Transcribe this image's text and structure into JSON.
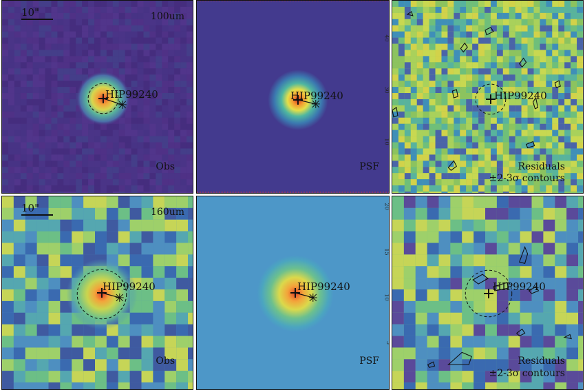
{
  "target_name": "HIP99240",
  "scale_bar_label": "10\"",
  "rows": [
    {
      "band": "100um",
      "panels": [
        {
          "type": "observed",
          "label": "Obs"
        },
        {
          "type": "psf",
          "label": "PSF"
        },
        {
          "type": "residuals",
          "label_line1": "Residuals",
          "label_line2": "±2-3σ contours"
        }
      ],
      "psf_ticks": [
        "40",
        "30",
        "10"
      ]
    },
    {
      "band": "160um",
      "panels": [
        {
          "type": "observed",
          "label": "Obs"
        },
        {
          "type": "psf",
          "label": "PSF"
        },
        {
          "type": "residuals",
          "label_line1": "Residuals",
          "label_line2": "±2-3σ contours"
        }
      ],
      "psf_ticks": [
        "20",
        "15",
        "10",
        "5"
      ]
    }
  ],
  "colors": {
    "obs_bg_100": "#4b2f83",
    "psf_bg_100": "#433a8e",
    "psf_bg_160": "#4d97c8",
    "peak": "#e8412b",
    "resid_green": "#8cc35f",
    "resid_teal": "#3fa3a4"
  }
}
